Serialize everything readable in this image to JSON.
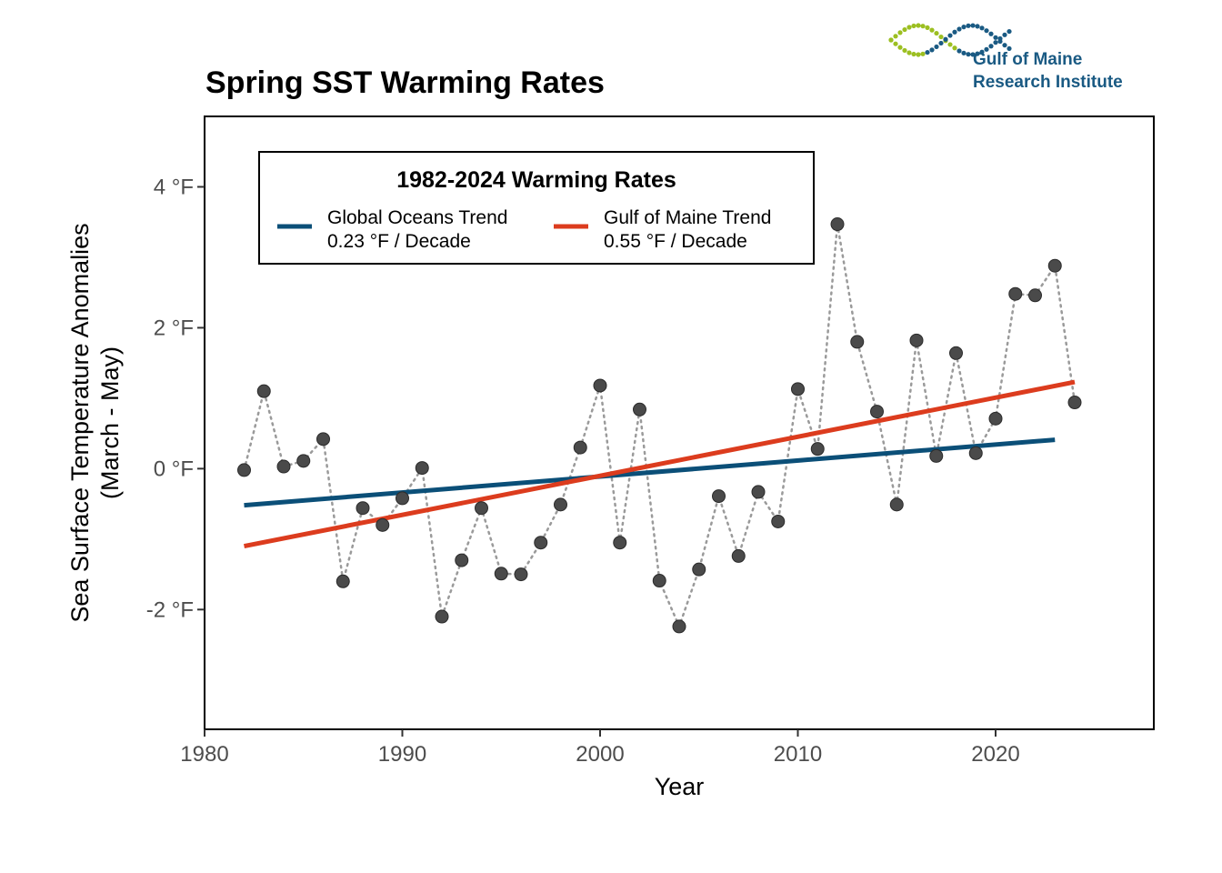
{
  "brand": {
    "line1": "Gulf of Maine",
    "line2": "Research Institute",
    "text_color": "#1a5a83",
    "dot_green": "#9cbf21",
    "dot_blue": "#1a5a83"
  },
  "chart_data": {
    "type": "scatter",
    "title": "Spring SST Warming Rates",
    "xlabel": "Year",
    "ylabel": [
      "Sea Surface Temperature Anomalies",
      "(March - May)"
    ],
    "xlim": [
      1980,
      2028
    ],
    "ylim": [
      -3.7,
      5.0
    ],
    "x_ticks": [
      1980,
      1990,
      2000,
      2010,
      2020
    ],
    "y_ticks": [
      -2,
      0,
      2,
      4
    ],
    "y_tick_labels": [
      "-2 °F",
      "0 °F",
      "2 °F",
      "4 °F"
    ],
    "grid": false,
    "series": [
      {
        "x": [
          1982,
          1983,
          1984,
          1985,
          1986,
          1987,
          1988,
          1989,
          1990,
          1991,
          1992,
          1993,
          1994,
          1995,
          1996,
          1997,
          1998,
          1999,
          2000,
          2001,
          2002,
          2003,
          2004,
          2005,
          2006,
          2007,
          2008,
          2009,
          2010,
          2011,
          2012,
          2013,
          2014,
          2015,
          2016,
          2017,
          2018,
          2019,
          2020,
          2021,
          2022,
          2023,
          2024
        ],
        "y": [
          -0.02,
          1.1,
          0.03,
          0.11,
          0.42,
          -1.6,
          -0.56,
          -0.8,
          -0.42,
          0.01,
          -2.1,
          -1.3,
          -0.56,
          -1.49,
          -1.5,
          -1.05,
          -0.51,
          0.3,
          1.18,
          -1.05,
          0.84,
          -1.59,
          -2.24,
          -1.43,
          -0.39,
          -1.24,
          -0.33,
          -0.75,
          1.13,
          0.28,
          3.47,
          1.8,
          0.81,
          -0.51,
          1.82,
          0.18,
          1.64,
          0.22,
          0.71,
          2.48,
          2.46,
          2.88,
          0.94
        ],
        "color": "#4a4a4a",
        "connector": "dotted"
      }
    ],
    "trend_lines": [
      {
        "x": [
          1982,
          2023
        ],
        "y": [
          -0.52,
          0.41
        ],
        "color": "#0b4f78"
      },
      {
        "x": [
          1982,
          2024
        ],
        "y": [
          -1.1,
          1.23
        ],
        "color": "#dc3c1e"
      }
    ],
    "legend": {
      "title": "1982-2024 Warming Rates",
      "placement": "top-left",
      "entries": [
        {
          "line1": "Global Oceans Trend",
          "line2": "0.23 °F / Decade",
          "color": "#0b4f78"
        },
        {
          "line1": "Gulf of Maine Trend",
          "line2": "0.55 °F / Decade",
          "color": "#dc3c1e"
        }
      ]
    }
  }
}
